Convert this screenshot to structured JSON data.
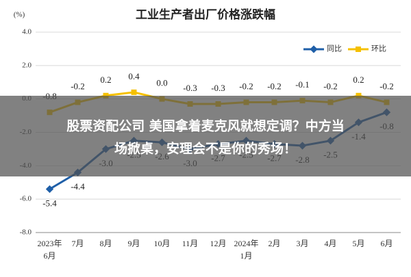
{
  "chart_data": {
    "type": "line",
    "title": "工业生产者出厂价格涨跌幅",
    "y_label": "(%)",
    "categories": [
      [
        "2023年",
        "6月"
      ],
      [
        "7月"
      ],
      [
        "8月"
      ],
      [
        "9月"
      ],
      [
        "10月"
      ],
      [
        "11月"
      ],
      [
        "12月"
      ],
      [
        "2024年",
        "1月"
      ],
      [
        "2月"
      ],
      [
        "3月"
      ],
      [
        "4月"
      ],
      [
        "5月"
      ],
      [
        "6月"
      ]
    ],
    "series": [
      {
        "name": "同比",
        "color": "#1f5fa8",
        "values": [
          -5.4,
          -4.4,
          -3.0,
          -2.5,
          -2.6,
          -3.0,
          -2.7,
          -2.5,
          -2.7,
          -2.8,
          -2.5,
          -1.4,
          -0.8
        ],
        "value_labels": [
          "-5.4",
          "-4.4",
          "-3.0",
          "-2.5",
          "-2.6",
          "-3.0",
          "-2.7",
          "-2.5",
          "-2.7",
          "-2.8",
          "-2.5",
          "-1.4",
          "-0.8"
        ]
      },
      {
        "name": "环比",
        "color": "#f5c000",
        "values": [
          -0.8,
          -0.2,
          0.2,
          0.4,
          0.0,
          -0.3,
          -0.3,
          -0.2,
          -0.2,
          -0.1,
          -0.2,
          0.2,
          -0.2
        ],
        "value_labels": [
          "-0.8",
          "-0.2",
          "0.2",
          "0.4",
          "0.0",
          "-0.3",
          "-0.3",
          "-0.2",
          "-0.2",
          "-0.1",
          "-0.2",
          "0.2",
          "-0.2"
        ]
      }
    ],
    "ylim": [
      -8,
      4
    ],
    "yticks": [
      {
        "value": 4,
        "label": "4.0"
      },
      {
        "value": 2,
        "label": "2.0"
      },
      {
        "value": 0,
        "label": "0.0"
      },
      {
        "value": -2,
        "label": "-2.0"
      },
      {
        "value": -4,
        "label": "-4.0"
      },
      {
        "value": -6,
        "label": "-6.0"
      },
      {
        "value": -8,
        "label": "-8.0"
      }
    ],
    "grid": true,
    "legend": "top-right"
  },
  "overlay": {
    "lines": [
      "股票资配公司 美国拿着麦克风就想定调？中方当",
      "场掀桌，安理会不是你的秀场！"
    ]
  }
}
